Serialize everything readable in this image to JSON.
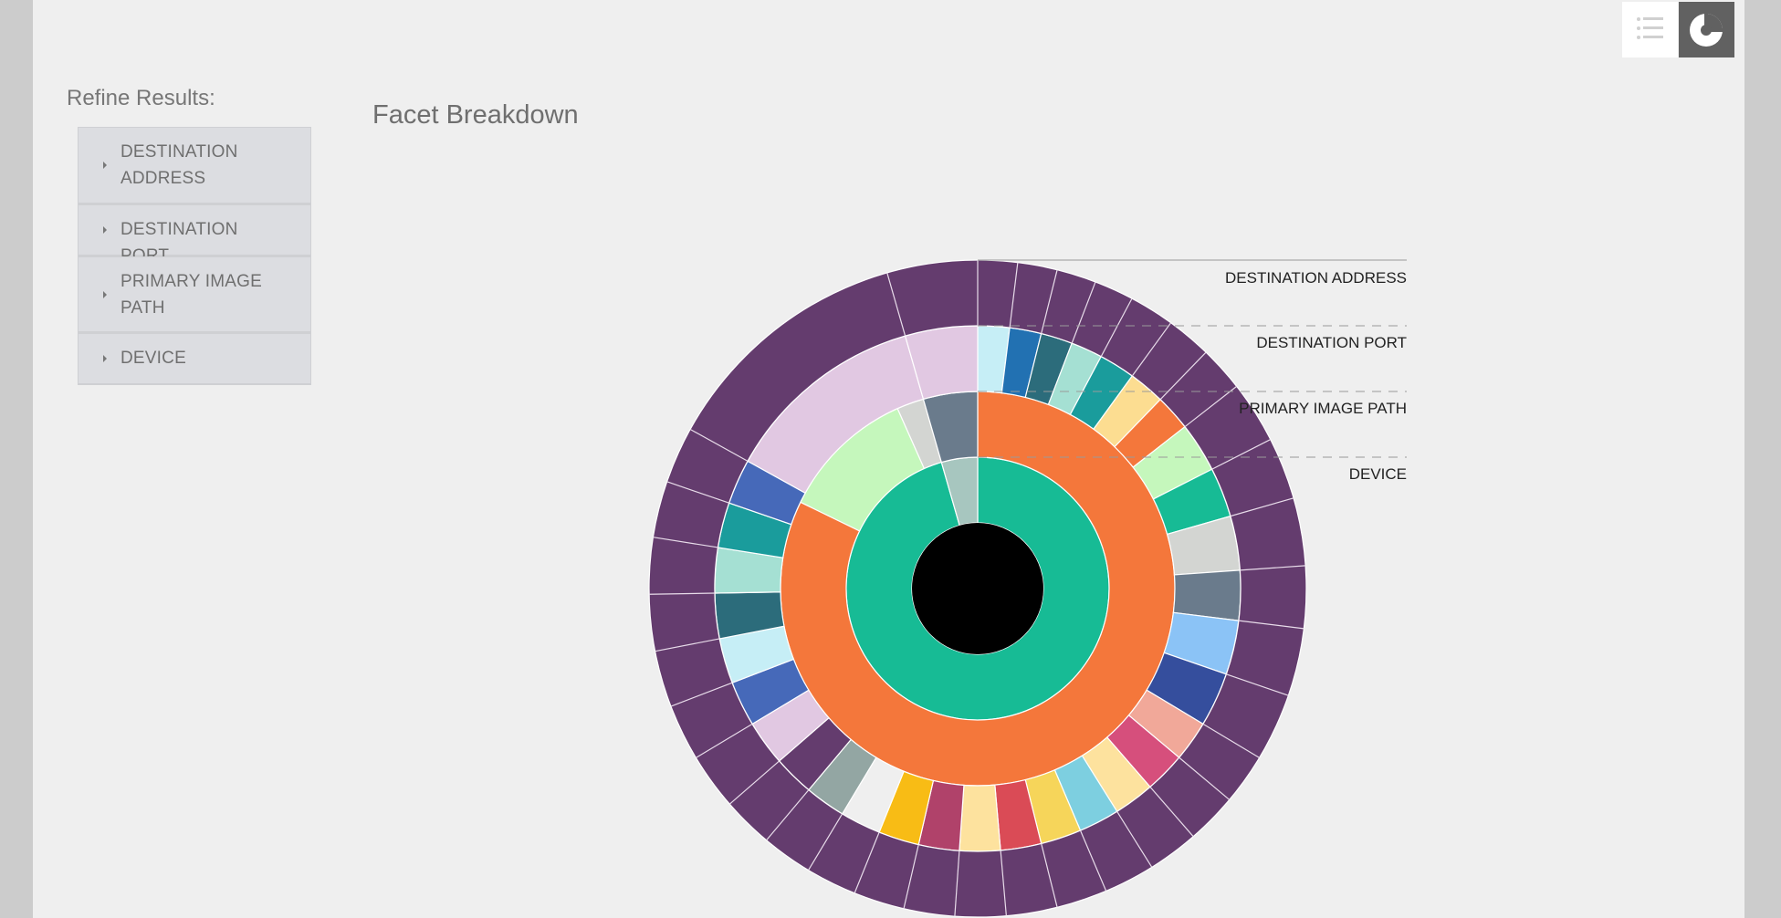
{
  "sidebar": {
    "title": "Refine Results:",
    "facets": [
      {
        "label": "DESTINATION ADDRESS"
      },
      {
        "label": "DESTINATION PORT"
      },
      {
        "label": "PRIMARY IMAGE PATH"
      },
      {
        "label": "DEVICE"
      }
    ]
  },
  "toolbar": {
    "list_icon": "list-view-icon",
    "chart_icon": "sunburst-chart-icon",
    "active_view": "chart"
  },
  "main": {
    "title": "Facet Breakdown"
  },
  "colors": {
    "page_bg": "#efefef",
    "facet_bg": "#dcdde1",
    "purple": "#643c6e",
    "orange": "#f4773b",
    "green": "#17bb95",
    "center": "#000000"
  },
  "chart_data": {
    "type": "sunburst",
    "rings": [
      "DEVICE",
      "PRIMARY IMAGE PATH",
      "DESTINATION PORT",
      "DESTINATION ADDRESS"
    ],
    "ring_labels": [
      "DESTINATION ADDRESS",
      "DESTINATION PORT",
      "PRIMARY IMAGE PATH",
      "DEVICE"
    ],
    "center_color": "#000000",
    "segments": [
      [
        {
          "start": 0,
          "end": 344,
          "color": "#17bb95"
        },
        {
          "start": 344,
          "end": 360,
          "color": "#a7c6bf"
        }
      ],
      [
        {
          "start": 0,
          "end": 296,
          "color": "#f4773b"
        },
        {
          "start": 296,
          "end": 336,
          "color": "#c5f7bc"
        },
        {
          "start": 336,
          "end": 344,
          "color": "#d3d5d2"
        },
        {
          "start": 344,
          "end": 360,
          "color": "#6a7b8c"
        }
      ],
      [
        {
          "start": 0,
          "end": 7,
          "color": "#c6eef6"
        },
        {
          "start": 7,
          "end": 14,
          "color": "#2271b2"
        },
        {
          "start": 14,
          "end": 21,
          "color": "#2c6c7b"
        },
        {
          "start": 21,
          "end": 28,
          "color": "#a5e0d3"
        },
        {
          "start": 28,
          "end": 36,
          "color": "#1a9c9c"
        },
        {
          "start": 36,
          "end": 44,
          "color": "#fcdd91"
        },
        {
          "start": 44,
          "end": 52,
          "color": "#f4773b"
        },
        {
          "start": 52,
          "end": 63,
          "color": "#c5f7bc"
        },
        {
          "start": 63,
          "end": 74,
          "color": "#17bb95"
        },
        {
          "start": 74,
          "end": 86,
          "color": "#d3d5d2"
        },
        {
          "start": 86,
          "end": 97,
          "color": "#6a7b8c"
        },
        {
          "start": 97,
          "end": 109,
          "color": "#8bc3f6"
        },
        {
          "start": 109,
          "end": 121,
          "color": "#354e9d"
        },
        {
          "start": 121,
          "end": 130,
          "color": "#f1a899"
        },
        {
          "start": 130,
          "end": 139,
          "color": "#d64f7c"
        },
        {
          "start": 139,
          "end": 148,
          "color": "#fde29e"
        },
        {
          "start": 148,
          "end": 157,
          "color": "#7dcfe0"
        },
        {
          "start": 157,
          "end": 166,
          "color": "#f6d55a"
        },
        {
          "start": 166,
          "end": 175,
          "color": "#da4b56"
        },
        {
          "start": 175,
          "end": 184,
          "color": "#fde29e"
        },
        {
          "start": 184,
          "end": 193,
          "color": "#b0426a"
        },
        {
          "start": 193,
          "end": 202,
          "color": "#f8bc15"
        },
        {
          "start": 202,
          "end": 211,
          "color": "#efefef"
        },
        {
          "start": 211,
          "end": 220,
          "color": "#93a6a3"
        },
        {
          "start": 220,
          "end": 229,
          "color": "#643c6e"
        },
        {
          "start": 229,
          "end": 239,
          "color": "#e1c8e2"
        },
        {
          "start": 239,
          "end": 249,
          "color": "#4669b9"
        },
        {
          "start": 249,
          "end": 259,
          "color": "#c6eef6"
        },
        {
          "start": 259,
          "end": 269,
          "color": "#2c6c7b"
        },
        {
          "start": 269,
          "end": 279,
          "color": "#a5e0d3"
        },
        {
          "start": 279,
          "end": 289,
          "color": "#1a9c9c"
        },
        {
          "start": 289,
          "end": 299,
          "color": "#4669b9"
        },
        {
          "start": 299,
          "end": 344,
          "color": "#e1c8e2"
        },
        {
          "start": 344,
          "end": 360,
          "color": "#e1c8e2"
        }
      ],
      [
        {
          "start": 0,
          "end": 360,
          "color": "#643c6e"
        }
      ]
    ],
    "outer_dividers": [
      0,
      7,
      14,
      21,
      28,
      36,
      44,
      52,
      63,
      74,
      86,
      97,
      109,
      121,
      130,
      139,
      148,
      157,
      166,
      175,
      184,
      193,
      202,
      211,
      220,
      229,
      239,
      249,
      259,
      269,
      279,
      289,
      299,
      344
    ],
    "title": "Facet Breakdown"
  }
}
